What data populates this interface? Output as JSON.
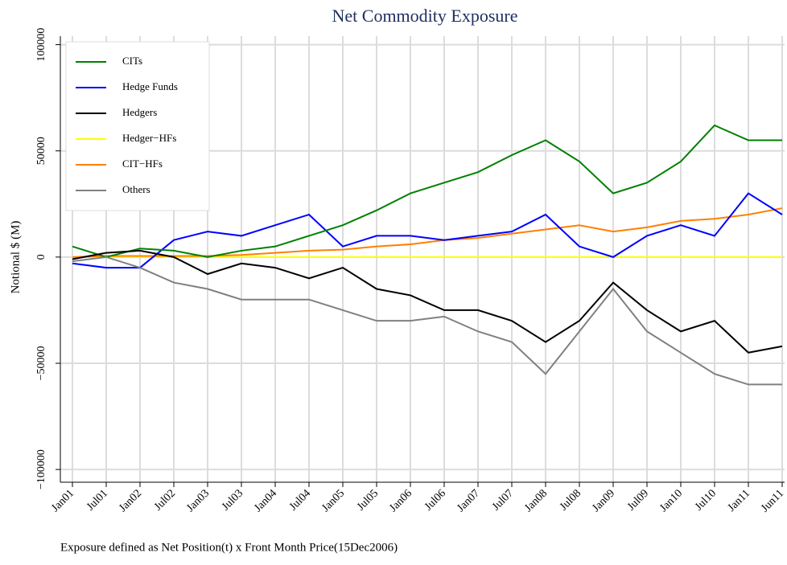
{
  "chart_data": {
    "type": "line",
    "title": "Net Commodity Exposure",
    "y_label": "Notional $ (M)",
    "footnote": "Exposure defined as Net Position(t) x Front Month Price(15Dec2006)",
    "categories": [
      "Jan01",
      "Jul01",
      "Jan02",
      "Jul02",
      "Jan03",
      "Jul03",
      "Jan04",
      "Jul04",
      "Jan05",
      "Jul05",
      "Jan06",
      "Jul06",
      "Jan07",
      "Jul07",
      "Jan08",
      "Jul08",
      "Jan09",
      "Jul09",
      "Jan10",
      "Jul10",
      "Jan11",
      "Jun11"
    ],
    "series": [
      {
        "name": "CITs",
        "color": "#008000",
        "values": [
          5000,
          0,
          4000,
          3000,
          0,
          3000,
          5000,
          10000,
          15000,
          22000,
          30000,
          35000,
          40000,
          48000,
          55000,
          45000,
          30000,
          35000,
          45000,
          62000,
          55000,
          55000
        ]
      },
      {
        "name": "Hedge Funds",
        "color": "#0000ff",
        "values": [
          -3000,
          -5000,
          -5000,
          8000,
          12000,
          10000,
          15000,
          20000,
          5000,
          10000,
          10000,
          8000,
          10000,
          12000,
          20000,
          5000,
          0,
          10000,
          15000,
          10000,
          30000,
          20000
        ]
      },
      {
        "name": "Hedgers",
        "color": "#000000",
        "values": [
          -1000,
          2000,
          3000,
          0,
          -8000,
          -3000,
          -5000,
          -10000,
          -5000,
          -15000,
          -18000,
          -25000,
          -25000,
          -30000,
          -40000,
          -30000,
          -12000,
          -25000,
          -35000,
          -30000,
          -45000,
          -42000
        ]
      },
      {
        "name": "Hedger−HFs",
        "color": "#ffff00",
        "values": [
          0,
          0,
          0,
          0,
          0,
          0,
          0,
          0,
          0,
          0,
          0,
          0,
          0,
          0,
          0,
          0,
          0,
          0,
          0,
          0,
          0,
          0
        ]
      },
      {
        "name": "CIT−HFs",
        "color": "#ff8000",
        "values": [
          0,
          500,
          500,
          500,
          500,
          1000,
          2000,
          3000,
          3500,
          5000,
          6000,
          8000,
          9000,
          11000,
          13000,
          15000,
          12000,
          14000,
          17000,
          18000,
          20000,
          23000
        ]
      },
      {
        "name": "Others",
        "color": "#808080",
        "values": [
          -2000,
          0,
          -5000,
          -12000,
          -15000,
          -20000,
          -20000,
          -20000,
          -25000,
          -30000,
          -30000,
          -28000,
          -35000,
          -40000,
          -55000,
          -35000,
          -15000,
          -35000,
          -45000,
          -55000,
          -60000,
          -60000
        ]
      }
    ],
    "ylim": [
      -106000,
      104000
    ],
    "yticks": [
      {
        "value": -100000,
        "label": "−100000"
      },
      {
        "value": -50000,
        "label": "−50000"
      },
      0,
      50000,
      100000
    ],
    "grid": true,
    "legend": "top-left"
  }
}
